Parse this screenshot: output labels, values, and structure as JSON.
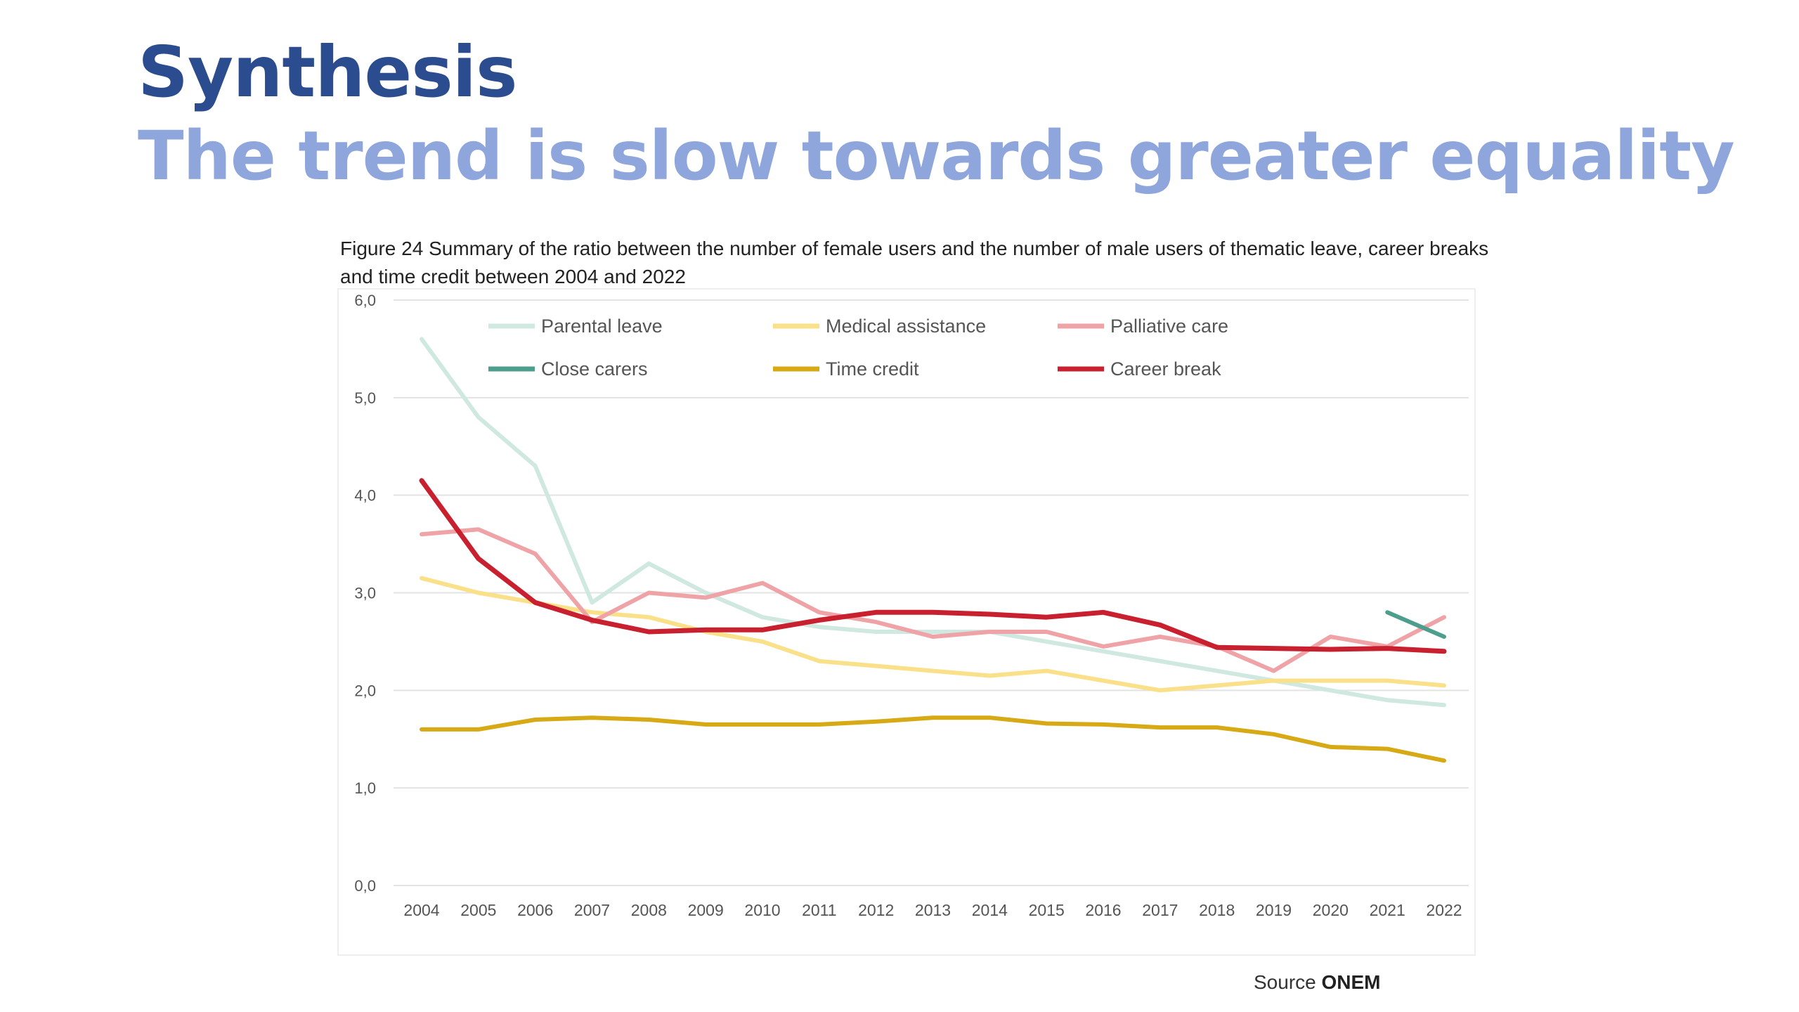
{
  "slide": {
    "title": "Synthesis",
    "subtitle": "The trend is slow towards greater equality",
    "source_label": "Source",
    "source_name": "ONEM"
  },
  "chart_data": {
    "type": "line",
    "title": "Figure 24 Summary of the ratio between the number of female users and the number of male users of thematic leave, career breaks and time credit between 2004 and 2022",
    "xlabel": "",
    "ylabel": "",
    "ylim": [
      0,
      6
    ],
    "yticks": [
      "0,0",
      "1,0",
      "2,0",
      "3,0",
      "4,0",
      "5,0",
      "6,0"
    ],
    "x": [
      "2004",
      "2005",
      "2006",
      "2007",
      "2008",
      "2009",
      "2010",
      "2011",
      "2012",
      "2013",
      "2014",
      "2015",
      "2016",
      "2017",
      "2018",
      "2019",
      "2020",
      "2021",
      "2022"
    ],
    "grid": true,
    "legend_position": "top",
    "series": [
      {
        "name": "Parental leave",
        "color": "#CFE8E0",
        "values": [
          5.6,
          4.8,
          4.3,
          2.9,
          3.3,
          3.0,
          2.75,
          2.65,
          2.6,
          2.6,
          2.6,
          2.5,
          2.4,
          2.3,
          2.2,
          2.1,
          2.0,
          1.9,
          1.85
        ]
      },
      {
        "name": "Medical assistance",
        "color": "#FBE08A",
        "values": [
          3.15,
          3.0,
          2.9,
          2.8,
          2.75,
          2.6,
          2.5,
          2.3,
          2.25,
          2.2,
          2.15,
          2.2,
          2.1,
          2.0,
          2.05,
          2.1,
          2.1,
          2.1,
          2.05
        ]
      },
      {
        "name": "Palliative care",
        "color": "#EFA3A6",
        "values": [
          3.6,
          3.65,
          3.4,
          2.7,
          3.0,
          2.95,
          3.1,
          2.8,
          2.7,
          2.55,
          2.6,
          2.6,
          2.45,
          2.55,
          2.45,
          2.2,
          2.55,
          2.45,
          2.75
        ]
      },
      {
        "name": "Close carers",
        "color": "#4E9E8E",
        "values": [
          null,
          null,
          null,
          null,
          null,
          null,
          null,
          null,
          null,
          null,
          null,
          null,
          null,
          null,
          null,
          null,
          null,
          2.8,
          2.55
        ]
      },
      {
        "name": "Time credit",
        "color": "#D6A915",
        "values": [
          1.6,
          1.6,
          1.7,
          1.72,
          1.7,
          1.65,
          1.65,
          1.65,
          1.68,
          1.72,
          1.72,
          1.66,
          1.65,
          1.62,
          1.62,
          1.55,
          1.42,
          1.4,
          1.28
        ]
      },
      {
        "name": "Career break",
        "color": "#C8202E",
        "values": [
          4.15,
          3.35,
          2.9,
          2.72,
          2.6,
          2.62,
          2.62,
          2.72,
          2.8,
          2.8,
          2.78,
          2.75,
          2.8,
          2.67,
          2.44,
          2.43,
          2.42,
          2.43,
          2.4
        ]
      }
    ]
  }
}
